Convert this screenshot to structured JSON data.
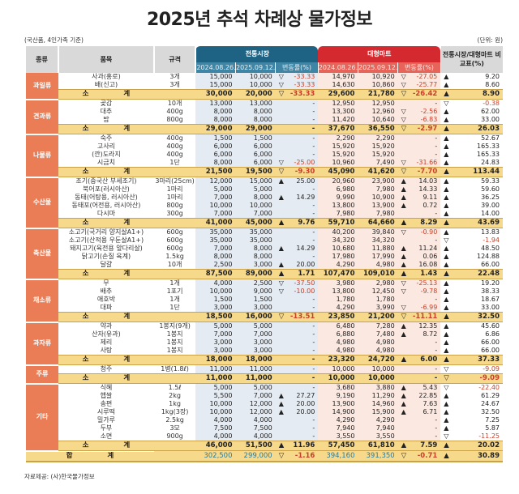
{
  "title": "2025년 추석 차례상 물가정보",
  "note_left": "(국산품, 4인가족 기준)",
  "note_right": "(단위: 원)",
  "source": "자료제공: (사)한국물가정보",
  "colors": {
    "traditional_header": "#1e6383",
    "mart_header": "#d42a2f",
    "category": "#ea7d55",
    "subtotal": "#f7d98c",
    "negative": "#c8402a"
  },
  "header": {
    "category": "종류",
    "item": "품목",
    "spec": "규격",
    "traditional": "전통시장",
    "mart": "대형마트",
    "date1": "2024.08.26.",
    "date2": "2025.09.12.",
    "change": "변동률(%)",
    "compare": "전통시장/대형마트 비교표(%)"
  },
  "subtotal_label": "소 계",
  "total_label": "합 계",
  "groups": [
    {
      "category": "과일류",
      "items": [
        [
          "사과(홍로)",
          "3개",
          "15,000",
          "10,000",
          "down",
          "-33.33",
          "14,970",
          "10,920",
          "down",
          "-27.05",
          "up",
          "9.20"
        ],
        [
          "배(신고)",
          "3개",
          "15,000",
          "10,000",
          "down",
          "-33.33",
          "14,630",
          "10,860",
          "down",
          "-25.77",
          "up",
          "8.60"
        ]
      ],
      "subtotal": [
        "30,000",
        "20,000",
        "down",
        "-33.33",
        "29,600",
        "21,780",
        "down",
        "-26.42",
        "up",
        "8.90"
      ]
    },
    {
      "category": "견과류",
      "items": [
        [
          "곶감",
          "10개",
          "13,000",
          "13,000",
          "",
          "-",
          "12,950",
          "12,950",
          "",
          "-",
          "down",
          "-0.38"
        ],
        [
          "대추",
          "400g",
          "8,000",
          "8,000",
          "",
          "-",
          "13,300",
          "12,960",
          "down",
          "-2.56",
          "up",
          "62.00"
        ],
        [
          "밤",
          "800g",
          "8,000",
          "8,000",
          "",
          "-",
          "11,420",
          "10,640",
          "down",
          "-6.83",
          "up",
          "33.00"
        ]
      ],
      "subtotal": [
        "29,000",
        "29,000",
        "",
        "-",
        "37,670",
        "36,550",
        "down",
        "-2.97",
        "up",
        "26.03"
      ]
    },
    {
      "category": "나물류",
      "items": [
        [
          "숙주",
          "400g",
          "1,500",
          "1,500",
          "",
          "-",
          "2,290",
          "2,290",
          "",
          "-",
          "up",
          "52.67"
        ],
        [
          "고사리",
          "400g",
          "6,000",
          "6,000",
          "",
          "-",
          "15,920",
          "15,920",
          "",
          "-",
          "up",
          "165.33"
        ],
        [
          "(깐)도라지",
          "400g",
          "6,000",
          "6,000",
          "",
          "-",
          "15,920",
          "15,920",
          "",
          "-",
          "up",
          "165.33"
        ],
        [
          "시금치",
          "1단",
          "8,000",
          "6,000",
          "down",
          "-25.00",
          "10,960",
          "7,490",
          "down",
          "-31.66",
          "up",
          "24.83"
        ]
      ],
      "subtotal": [
        "21,500",
        "19,500",
        "down",
        "-9.30",
        "45,090",
        "41,620",
        "down",
        "-7.70",
        "up",
        "113.44"
      ]
    },
    {
      "category": "수산물",
      "items": [
        [
          "조기(중국산 부세조기)",
          "3마리(25cm)",
          "12,000",
          "15,000",
          "up",
          "25.00",
          "20,960",
          "23,900",
          "up",
          "14.03",
          "up",
          "59.33"
        ],
        [
          "북어포(러시아산)",
          "1마리",
          "5,000",
          "5,000",
          "",
          "-",
          "6,980",
          "7,980",
          "up",
          "14.33",
          "up",
          "59.60"
        ],
        [
          "동태(어탕용, 러시아산)",
          "1마리",
          "7,000",
          "8,000",
          "up",
          "14.29",
          "9,990",
          "10,900",
          "up",
          "9.11",
          "up",
          "36.25"
        ],
        [
          "동태포(어전용, 러시아산)",
          "800g",
          "10,000",
          "10,000",
          "",
          "-",
          "13,800",
          "13,900",
          "up",
          "0.72",
          "up",
          "39.00"
        ],
        [
          "다시마",
          "300g",
          "7,000",
          "7,000",
          "",
          "-",
          "7,980",
          "7,980",
          "",
          "-",
          "up",
          "14.00"
        ]
      ],
      "subtotal": [
        "41,000",
        "45,000",
        "up",
        "9.76",
        "59,710",
        "64,660",
        "up",
        "8.29",
        "up",
        "43.69"
      ]
    },
    {
      "category": "축산물",
      "items": [
        [
          "소고기(국거리 양지살A1+)",
          "600g",
          "35,000",
          "35,000",
          "",
          "-",
          "40,200",
          "39,840",
          "down",
          "-0.90",
          "up",
          "13.83"
        ],
        [
          "소고기(산적용 우둔살A1+)",
          "600g",
          "35,000",
          "35,000",
          "",
          "-",
          "34,320",
          "34,320",
          "",
          "-",
          "down",
          "-1.94"
        ],
        [
          "돼지고기(육전용 앞다리살)",
          "600g",
          "7,000",
          "8,000",
          "up",
          "14.29",
          "10,680",
          "11,880",
          "up",
          "11.24",
          "up",
          "48.50"
        ],
        [
          "닭고기(손질 육계)",
          "1.5kg",
          "8,000",
          "8,000",
          "",
          "-",
          "17,980",
          "17,990",
          "up",
          "0.06",
          "up",
          "124.88"
        ],
        [
          "달걀",
          "10개",
          "2,500",
          "3,000",
          "up",
          "20.00",
          "4,290",
          "4,980",
          "up",
          "16.08",
          "up",
          "66.00"
        ]
      ],
      "subtotal": [
        "87,500",
        "89,000",
        "up",
        "1.71",
        "107,470",
        "109,010",
        "up",
        "1.43",
        "up",
        "22.48"
      ]
    },
    {
      "category": "채소류",
      "items": [
        [
          "무",
          "1개",
          "4,000",
          "2,500",
          "down",
          "-37.50",
          "3,980",
          "2,980",
          "down",
          "-25.13",
          "up",
          "19.20"
        ],
        [
          "배추",
          "1포기",
          "10,000",
          "9,000",
          "down",
          "-10.00",
          "13,800",
          "12,450",
          "down",
          "-9.78",
          "up",
          "38.33"
        ],
        [
          "애호박",
          "1개",
          "1,500",
          "1,500",
          "",
          "-",
          "1,780",
          "1,780",
          "",
          "-",
          "up",
          "18.67"
        ],
        [
          "대파",
          "1단",
          "3,000",
          "3,000",
          "",
          "-",
          "4,290",
          "3,990",
          "down",
          "-6.99",
          "up",
          "33.00"
        ]
      ],
      "subtotal": [
        "18,500",
        "16,000",
        "down",
        "-13.51",
        "23,850",
        "21,200",
        "down",
        "-11.11",
        "up",
        "32.50"
      ]
    },
    {
      "category": "과자류",
      "items": [
        [
          "약과",
          "1봉지(9개)",
          "5,000",
          "5,000",
          "",
          "-",
          "6,480",
          "7,280",
          "up",
          "12.35",
          "up",
          "45.60"
        ],
        [
          "산자(유과)",
          "1봉지",
          "7,000",
          "7,000",
          "",
          "-",
          "6,880",
          "7,480",
          "up",
          "8.72",
          "up",
          "6.86"
        ],
        [
          "제리",
          "1봉지",
          "3,000",
          "3,000",
          "",
          "-",
          "4,980",
          "4,980",
          "",
          "-",
          "up",
          "66.00"
        ],
        [
          "사탕",
          "1봉지",
          "3,000",
          "3,000",
          "",
          "-",
          "4,980",
          "4,980",
          "",
          "-",
          "up",
          "66.00"
        ]
      ],
      "subtotal": [
        "18,000",
        "18,000",
        "",
        "-",
        "23,320",
        "24,720",
        "up",
        "6.00",
        "up",
        "37.33"
      ]
    },
    {
      "category": "주류",
      "items": [
        [
          "청주",
          "1병(1.8ℓ)",
          "11,000",
          "11,000",
          "",
          "-",
          "10,000",
          "10,000",
          "",
          "-",
          "down",
          "-9.09"
        ]
      ],
      "subtotal": [
        "11,000",
        "11,000",
        "",
        "-",
        "10,000",
        "10,000",
        "",
        "-",
        "down",
        "-9.09"
      ]
    },
    {
      "category": "기타",
      "items": [
        [
          "식혜",
          "1.5ℓ",
          "5,000",
          "5,000",
          "",
          "-",
          "3,680",
          "3,880",
          "up",
          "5.43",
          "down",
          "-22.40"
        ],
        [
          "햅쌀",
          "2kg",
          "5,500",
          "7,000",
          "up",
          "27.27",
          "9,190",
          "11,290",
          "up",
          "22.85",
          "up",
          "61.29"
        ],
        [
          "송편",
          "1kg",
          "10,000",
          "12,000",
          "up",
          "20.00",
          "13,900",
          "14,960",
          "up",
          "7.63",
          "up",
          "24.67"
        ],
        [
          "시루떡",
          "1kg(3장)",
          "10,000",
          "12,000",
          "up",
          "20.00",
          "14,900",
          "15,900",
          "up",
          "6.71",
          "up",
          "32.50"
        ],
        [
          "밀가루",
          "2.5kg",
          "4,000",
          "4,000",
          "",
          "-",
          "4,290",
          "4,290",
          "",
          "-",
          "up",
          "7.25"
        ],
        [
          "두부",
          "3모",
          "7,500",
          "7,500",
          "",
          "-",
          "7,940",
          "7,940",
          "",
          "-",
          "up",
          "5.87"
        ],
        [
          "소면",
          "900g",
          "4,000",
          "4,000",
          "",
          "-",
          "3,550",
          "3,550",
          "",
          "-",
          "down",
          "-11.25"
        ]
      ],
      "subtotal": [
        "46,000",
        "51,500",
        "up",
        "11.96",
        "57,450",
        "61,810",
        "up",
        "7.59",
        "up",
        "20.02"
      ]
    }
  ],
  "total": [
    "302,500",
    "299,000",
    "down",
    "-1.16",
    "394,160",
    "391,350",
    "down",
    "-0.71",
    "up",
    "30.89"
  ]
}
